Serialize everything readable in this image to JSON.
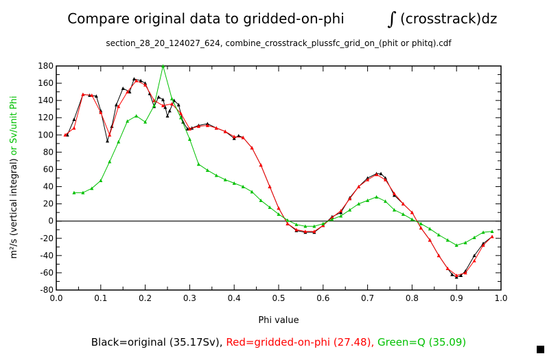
{
  "chart_data": {
    "type": "line",
    "title": "Compare original data to gridded-on-phi",
    "title_integral": "∫",
    "title_suffix": "(crosstrack)dz",
    "subtitle": "section_28_20_124027_624, combine_crosstrack_plussfc_grid_on_(phit or phitq).cdf",
    "xlabel": "Phi value",
    "ylabel_black": "m²/s (vertical integral)",
    "ylabel_green": " or Sv/unit Phi",
    "xlim": [
      0,
      1
    ],
    "ylim": [
      -80,
      180
    ],
    "xticks": [
      "0.0",
      "0.1",
      "0.2",
      "0.3",
      "0.4",
      "0.5",
      "0.6",
      "0.7",
      "0.8",
      "0.9",
      "1.0"
    ],
    "yticks": [
      "-80",
      "-60",
      "-40",
      "-20",
      "0",
      "20",
      "40",
      "60",
      "80",
      "100",
      "120",
      "140",
      "160",
      "180"
    ],
    "legend": {
      "black": "Black=original (35.17Sv),",
      "red": "Red=gridded-on-phi (27.48),",
      "green": "Green=Q (35.09)"
    },
    "colors": {
      "black": "#000000",
      "red": "#ff0000",
      "green": "#00c000"
    },
    "series": [
      {
        "name": "original",
        "color": "#000000",
        "x": [
          0.025,
          0.04,
          0.06,
          0.075,
          0.09,
          0.1,
          0.115,
          0.125,
          0.135,
          0.15,
          0.165,
          0.175,
          0.19,
          0.2,
          0.21,
          0.22,
          0.23,
          0.24,
          0.245,
          0.25,
          0.255,
          0.265,
          0.275,
          0.285,
          0.295,
          0.305,
          0.32,
          0.34,
          0.36,
          0.38,
          0.4,
          0.41,
          0.42,
          0.44,
          0.46,
          0.48,
          0.5,
          0.52,
          0.54,
          0.56,
          0.58,
          0.6,
          0.62,
          0.64,
          0.66,
          0.68,
          0.7,
          0.72,
          0.73,
          0.74,
          0.76,
          0.78,
          0.8,
          0.82,
          0.84,
          0.86,
          0.88,
          0.89,
          0.9,
          0.91,
          0.92,
          0.94,
          0.96,
          0.98
        ],
        "y": [
          100,
          118,
          147,
          146,
          145,
          128,
          93,
          110,
          135,
          154,
          150,
          165,
          163,
          160,
          148,
          133,
          144,
          141,
          132,
          122,
          128,
          140,
          135,
          115,
          107,
          108,
          111,
          113,
          108,
          104,
          96,
          99,
          97,
          85,
          65,
          40,
          15,
          -3,
          -11,
          -13,
          -13,
          -5,
          5,
          10,
          27,
          40,
          50,
          55,
          55,
          50,
          30,
          20,
          10,
          -8,
          -22,
          -40,
          -55,
          -62,
          -65,
          -63,
          -58,
          -40,
          -26,
          -18
        ]
      },
      {
        "name": "gridded-on-phi",
        "color": "#ff0000",
        "x": [
          0.02,
          0.04,
          0.06,
          0.08,
          0.1,
          0.12,
          0.14,
          0.16,
          0.18,
          0.2,
          0.22,
          0.24,
          0.26,
          0.28,
          0.3,
          0.32,
          0.34,
          0.36,
          0.38,
          0.4,
          0.42,
          0.44,
          0.46,
          0.48,
          0.5,
          0.52,
          0.54,
          0.56,
          0.58,
          0.6,
          0.62,
          0.64,
          0.66,
          0.68,
          0.7,
          0.72,
          0.74,
          0.76,
          0.78,
          0.8,
          0.82,
          0.84,
          0.86,
          0.88,
          0.9,
          0.92,
          0.94,
          0.96,
          0.98
        ],
        "y": [
          100,
          108,
          147,
          146,
          126,
          100,
          133,
          150,
          163,
          158,
          140,
          134,
          136,
          125,
          107,
          110,
          111,
          108,
          104,
          98,
          97,
          85,
          65,
          40,
          15,
          -3,
          -10,
          -12,
          -12,
          -5,
          4,
          12,
          26,
          40,
          48,
          54,
          48,
          32,
          20,
          10,
          -8,
          -22,
          -40,
          -55,
          -63,
          -60,
          -46,
          -28,
          -18
        ]
      },
      {
        "name": "Q",
        "color": "#00c000",
        "x": [
          0.04,
          0.06,
          0.08,
          0.1,
          0.12,
          0.14,
          0.16,
          0.18,
          0.2,
          0.22,
          0.24,
          0.26,
          0.28,
          0.3,
          0.32,
          0.34,
          0.36,
          0.38,
          0.4,
          0.42,
          0.44,
          0.46,
          0.48,
          0.5,
          0.52,
          0.54,
          0.56,
          0.58,
          0.6,
          0.62,
          0.64,
          0.66,
          0.68,
          0.7,
          0.72,
          0.74,
          0.76,
          0.78,
          0.8,
          0.82,
          0.84,
          0.86,
          0.88,
          0.9,
          0.92,
          0.94,
          0.96,
          0.98
        ],
        "y": [
          33,
          33,
          38,
          47,
          69,
          92,
          116,
          122,
          115,
          134,
          180,
          142,
          120,
          95,
          66,
          59,
          53,
          48,
          44,
          40,
          34,
          24,
          16,
          8,
          1,
          -4,
          -6,
          -6,
          -3,
          2,
          6,
          13,
          20,
          24,
          28,
          23,
          13,
          8,
          2,
          -3,
          -9,
          -16,
          -22,
          -28,
          -25,
          -19,
          -13,
          -12
        ]
      }
    ]
  }
}
